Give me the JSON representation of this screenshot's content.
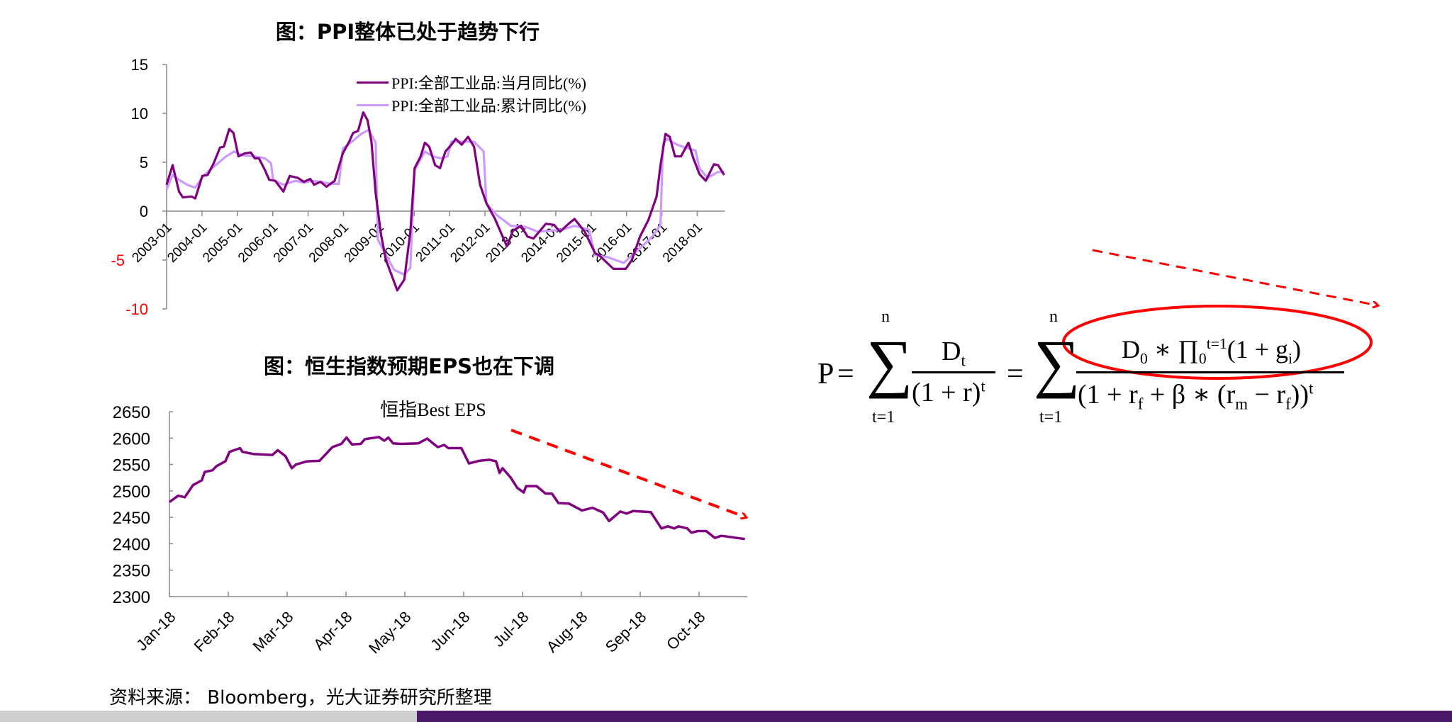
{
  "chart_data": [
    {
      "type": "line",
      "title": "图：PPI整体已处于趋势下行",
      "x_unit": "years since 2003-01",
      "x_tick_labels": [
        "2003-01",
        "2004-01",
        "2005-01",
        "2006-01",
        "2007-01",
        "2008-01",
        "2009-01",
        "2010-01",
        "2011-01",
        "2012-01",
        "2013-01",
        "2014-01",
        "2015-01",
        "2016-01",
        "2017-01",
        "2018-01"
      ],
      "y_tick_labels": [
        "15",
        "10",
        "5",
        "0",
        "-5",
        "-10"
      ],
      "ylim": [
        -10,
        15
      ],
      "legend_position": "top-right",
      "series": [
        {
          "name": "PPI:全部工业品:当月同比(%)",
          "color": "#800080",
          "points": [
            [
              0,
              2.7
            ],
            [
              0.17,
              4.7
            ],
            [
              0.35,
              2.0
            ],
            [
              0.46,
              1.4
            ],
            [
              0.7,
              1.5
            ],
            [
              0.81,
              1.3
            ],
            [
              1.01,
              3.6
            ],
            [
              1.16,
              3.7
            ],
            [
              1.33,
              4.9
            ],
            [
              1.51,
              6.5
            ],
            [
              1.62,
              6.6
            ],
            [
              1.77,
              8.4
            ],
            [
              1.89,
              8.0
            ],
            [
              2.03,
              5.6
            ],
            [
              2.2,
              5.9
            ],
            [
              2.38,
              6.0
            ],
            [
              2.49,
              5.4
            ],
            [
              2.61,
              5.4
            ],
            [
              2.78,
              4.2
            ],
            [
              2.9,
              3.2
            ],
            [
              3.07,
              3.1
            ],
            [
              3.3,
              2.0
            ],
            [
              3.48,
              3.6
            ],
            [
              3.71,
              3.4
            ],
            [
              3.88,
              3.0
            ],
            [
              4.06,
              3.3
            ],
            [
              4.17,
              2.7
            ],
            [
              4.35,
              3.0
            ],
            [
              4.52,
              2.5
            ],
            [
              4.75,
              3.1
            ],
            [
              4.98,
              5.9
            ],
            [
              5.16,
              7.1
            ],
            [
              5.27,
              8.0
            ],
            [
              5.41,
              8.2
            ],
            [
              5.56,
              10.1
            ],
            [
              5.68,
              9.3
            ],
            [
              5.79,
              7.1
            ],
            [
              5.91,
              1.8
            ],
            [
              6.06,
              -2.4
            ],
            [
              6.2,
              -5.0
            ],
            [
              6.52,
              -8.1
            ],
            [
              6.72,
              -7.0
            ],
            [
              6.89,
              -2.1
            ],
            [
              7.01,
              4.4
            ],
            [
              7.18,
              5.6
            ],
            [
              7.3,
              7.0
            ],
            [
              7.42,
              6.6
            ],
            [
              7.59,
              4.7
            ],
            [
              7.73,
              4.4
            ],
            [
              7.88,
              6.1
            ],
            [
              8.05,
              6.8
            ],
            [
              8.17,
              7.4
            ],
            [
              8.34,
              6.8
            ],
            [
              8.52,
              7.6
            ],
            [
              8.69,
              6.6
            ],
            [
              8.86,
              2.7
            ],
            [
              9.04,
              0.8
            ],
            [
              9.27,
              -0.7
            ],
            [
              9.62,
              -3.6
            ],
            [
              9.79,
              -2.0
            ],
            [
              10.02,
              -1.5
            ],
            [
              10.2,
              -2.6
            ],
            [
              10.37,
              -2.8
            ],
            [
              10.72,
              -1.3
            ],
            [
              10.95,
              -1.4
            ],
            [
              11.12,
              -2.1
            ],
            [
              11.36,
              -1.3
            ],
            [
              11.53,
              -0.8
            ],
            [
              11.82,
              -2.1
            ],
            [
              12.11,
              -4.3
            ],
            [
              12.22,
              -4.5
            ],
            [
              12.63,
              -5.9
            ],
            [
              12.98,
              -5.9
            ],
            [
              13.15,
              -5.0
            ],
            [
              13.38,
              -2.6
            ],
            [
              13.62,
              -0.9
            ],
            [
              13.85,
              1.5
            ],
            [
              13.96,
              4.7
            ],
            [
              14.1,
              7.9
            ],
            [
              14.22,
              7.6
            ],
            [
              14.37,
              5.6
            ],
            [
              14.54,
              5.6
            ],
            [
              14.75,
              7.0
            ],
            [
              14.89,
              5.4
            ],
            [
              15.06,
              3.8
            ],
            [
              15.24,
              3.1
            ],
            [
              15.47,
              4.8
            ],
            [
              15.59,
              4.7
            ],
            [
              15.76,
              3.7
            ]
          ]
        },
        {
          "name": "PPI:全部工业品:累计同比(%)",
          "color": "#cc99ff",
          "points": [
            [
              0,
              2.2
            ],
            [
              0.17,
              3.7
            ],
            [
              0.35,
              3.2
            ],
            [
              0.58,
              2.7
            ],
            [
              0.81,
              2.4
            ],
            [
              1.01,
              3.5
            ],
            [
              1.22,
              4.2
            ],
            [
              1.45,
              4.9
            ],
            [
              1.68,
              5.6
            ],
            [
              1.91,
              6.1
            ],
            [
              2.14,
              5.7
            ],
            [
              2.49,
              5.6
            ],
            [
              2.78,
              5.4
            ],
            [
              2.95,
              4.9
            ],
            [
              3.01,
              3.2
            ],
            [
              3.3,
              2.7
            ],
            [
              3.65,
              3.1
            ],
            [
              3.88,
              2.9
            ],
            [
              4.11,
              3.1
            ],
            [
              4.35,
              3.0
            ],
            [
              4.64,
              2.8
            ],
            [
              4.87,
              2.8
            ],
            [
              4.98,
              6.4
            ],
            [
              5.27,
              7.2
            ],
            [
              5.5,
              7.9
            ],
            [
              5.71,
              8.3
            ],
            [
              5.91,
              7.0
            ],
            [
              5.97,
              -2.9
            ],
            [
              6.14,
              -4.1
            ],
            [
              6.43,
              -6.0
            ],
            [
              6.72,
              -6.5
            ],
            [
              6.89,
              -5.8
            ],
            [
              7.01,
              4.2
            ],
            [
              7.3,
              6.1
            ],
            [
              7.53,
              5.6
            ],
            [
              7.76,
              5.4
            ],
            [
              7.94,
              5.6
            ],
            [
              8.05,
              7.1
            ],
            [
              8.4,
              7.1
            ],
            [
              8.69,
              7.1
            ],
            [
              8.96,
              6.1
            ],
            [
              9.04,
              0.8
            ],
            [
              9.33,
              -0.4
            ],
            [
              9.73,
              -1.5
            ],
            [
              10.14,
              -1.6
            ],
            [
              10.49,
              -2.1
            ],
            [
              10.83,
              -2.0
            ],
            [
              11.18,
              -1.9
            ],
            [
              11.53,
              -1.5
            ],
            [
              11.94,
              -1.9
            ],
            [
              12.11,
              -4.5
            ],
            [
              12.46,
              -4.7
            ],
            [
              12.92,
              -5.3
            ],
            [
              13.38,
              -3.8
            ],
            [
              13.73,
              -2.6
            ],
            [
              13.96,
              -1.4
            ],
            [
              14.03,
              6.8
            ],
            [
              14.14,
              7.4
            ],
            [
              14.43,
              6.8
            ],
            [
              14.66,
              6.5
            ],
            [
              14.95,
              6.2
            ],
            [
              15.06,
              4.4
            ],
            [
              15.29,
              3.4
            ],
            [
              15.58,
              4.0
            ],
            [
              15.76,
              4.0
            ]
          ]
        }
      ]
    },
    {
      "type": "line",
      "title": "图：恒生指数预期EPS也在下调",
      "subtitle": "恒指Best EPS",
      "x_unit": "months since Jan-18",
      "x_tick_labels": [
        "Jan-18",
        "Feb-18",
        "Mar-18",
        "Apr-18",
        "May-18",
        "Jun-18",
        "Jul-18",
        "Aug-18",
        "Sep-18",
        "Oct-18"
      ],
      "y_tick_labels": [
        "2650",
        "2600",
        "2550",
        "2500",
        "2450",
        "2400",
        "2350",
        "2300"
      ],
      "ylim": [
        2300,
        2650
      ],
      "series": [
        {
          "name": "恒指Best EPS",
          "color": "#800080",
          "points": [
            [
              0,
              2479
            ],
            [
              0.15,
              2491
            ],
            [
              0.26,
              2488
            ],
            [
              0.4,
              2511
            ],
            [
              0.55,
              2520
            ],
            [
              0.6,
              2536
            ],
            [
              0.73,
              2539
            ],
            [
              0.8,
              2547
            ],
            [
              0.95,
              2556
            ],
            [
              1.02,
              2574
            ],
            [
              1.2,
              2581
            ],
            [
              1.24,
              2574
            ],
            [
              1.42,
              2570
            ],
            [
              1.75,
              2568
            ],
            [
              1.84,
              2577
            ],
            [
              1.97,
              2566
            ],
            [
              2.08,
              2543
            ],
            [
              2.15,
              2550
            ],
            [
              2.34,
              2556
            ],
            [
              2.55,
              2557
            ],
            [
              2.66,
              2570
            ],
            [
              2.77,
              2583
            ],
            [
              2.92,
              2589
            ],
            [
              3.01,
              2601
            ],
            [
              3.1,
              2588
            ],
            [
              3.25,
              2589
            ],
            [
              3.32,
              2598
            ],
            [
              3.56,
              2602
            ],
            [
              3.65,
              2595
            ],
            [
              3.72,
              2601
            ],
            [
              3.8,
              2590
            ],
            [
              3.94,
              2589
            ],
            [
              4.23,
              2590
            ],
            [
              4.38,
              2599
            ],
            [
              4.49,
              2589
            ],
            [
              4.56,
              2583
            ],
            [
              4.67,
              2587
            ],
            [
              4.74,
              2581
            ],
            [
              4.96,
              2581
            ],
            [
              5.09,
              2552
            ],
            [
              5.26,
              2557
            ],
            [
              5.44,
              2559
            ],
            [
              5.55,
              2556
            ],
            [
              5.61,
              2534
            ],
            [
              5.66,
              2543
            ],
            [
              5.8,
              2525
            ],
            [
              5.91,
              2506
            ],
            [
              6.02,
              2497
            ],
            [
              6.06,
              2509
            ],
            [
              6.24,
              2509
            ],
            [
              6.39,
              2495
            ],
            [
              6.5,
              2495
            ],
            [
              6.61,
              2477
            ],
            [
              6.79,
              2476
            ],
            [
              7.01,
              2463
            ],
            [
              7.19,
              2468
            ],
            [
              7.37,
              2459
            ],
            [
              7.47,
              2443
            ],
            [
              7.66,
              2461
            ],
            [
              7.77,
              2457
            ],
            [
              7.88,
              2462
            ],
            [
              8.18,
              2460
            ],
            [
              8.36,
              2429
            ],
            [
              8.47,
              2433
            ],
            [
              8.58,
              2429
            ],
            [
              8.65,
              2433
            ],
            [
              8.8,
              2429
            ],
            [
              8.87,
              2421
            ],
            [
              8.98,
              2424
            ],
            [
              9.12,
              2424
            ],
            [
              9.27,
              2411
            ],
            [
              9.38,
              2415
            ],
            [
              9.64,
              2411
            ],
            [
              9.78,
              2409
            ]
          ]
        }
      ]
    }
  ],
  "formula": {
    "lhs": "P",
    "eq": "=",
    "sum_upper": "n",
    "sum_lower": "t=1",
    "frac1_num_main": "D",
    "frac1_num_sub": "t",
    "frac1_den_main": "(1 + r)",
    "frac1_den_sup": "t",
    "frac2_num_a": "D",
    "frac2_num_a_sub": "0",
    "frac2_num_b": " ∗ ∏",
    "frac2_num_b_sub": "0",
    "frac2_num_b_sup": "t=1",
    "frac2_num_c": "(1 + g",
    "frac2_num_c_sub": "i",
    "frac2_num_d": ")",
    "frac2_den_a": "(1 + r",
    "frac2_den_a_sub": "f",
    "frac2_den_b": " + β ∗ (r",
    "frac2_den_b_sub": "m",
    "frac2_den_c": " − r",
    "frac2_den_c_sub": "f",
    "frac2_den_d": "))",
    "frac2_den_sup": "t"
  },
  "source": "资料来源：  Bloomberg，光大证券研究所整理",
  "colors": {
    "annotation_red": "#ff0000",
    "brand_purple": "#4b1a6b",
    "negative_label": "#ff0000"
  }
}
